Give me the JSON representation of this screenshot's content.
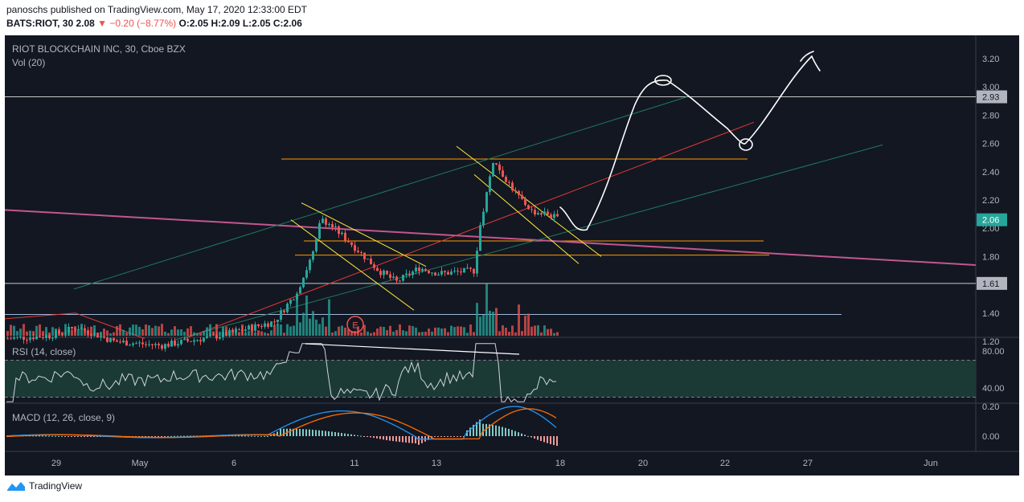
{
  "header": {
    "published_by": "panoschs published on TradingView.com, May 17, 2020 12:33:00 EDT",
    "symbol": "BATS:RIOT, 30",
    "last": "2.08",
    "arrow": "▼",
    "change": "−0.20 (−8.77%)",
    "ohlc": "O:2.05 H:2.09 L:2.05 C:2.06"
  },
  "pane_title": "RIOT BLOCKCHAIN INC, 30, Cboe BZX",
  "vol_label": "Vol (20)",
  "rsi_label": "RSI (14, close)",
  "macd_label": "MACD (12, 26, close, 9)",
  "footer_brand": "TradingView",
  "annotation_marker": "E",
  "price_axis": {
    "ticks": [
      "3.20",
      "3.00",
      "2.80",
      "2.60",
      "2.40",
      "2.20",
      "2.00",
      "1.80",
      "1.60",
      "1.40",
      "1.20"
    ],
    "tags": [
      {
        "label": "2.93",
        "value": 2.93
      },
      {
        "label": "2.06",
        "value": 2.06
      },
      {
        "label": "1.61",
        "value": 1.61
      }
    ]
  },
  "rsi_axis": {
    "ticks": [
      "80.00",
      "40.00"
    ],
    "band_upper": 70,
    "band_lower": 30
  },
  "macd_axis": {
    "ticks": [
      "0.20",
      "0.00"
    ]
  },
  "time_axis": [
    "29",
    "May",
    "6",
    "11",
    "13",
    "18",
    "20",
    "22",
    "27",
    "Jun"
  ],
  "colors": {
    "background": "#131722",
    "grid": "#363c4e",
    "text": "#b2b5be",
    "up": "#26a69a",
    "down": "#ef5350",
    "last_price_tag": "#26a69a",
    "level_tag": "#b2b5be",
    "orange_levels": "#ff9800",
    "yellow_channel": "#ffeb3b",
    "green_channel": "#1e7b5f",
    "red_trend": "#e53935",
    "pink_trend": "#c2578f",
    "rsi_line": "#d1d4dc",
    "rsi_band": "#1b3a36",
    "macd_line": "#2196f3",
    "signal_line": "#ff6d00",
    "drawing": "#ffffff"
  },
  "chart_data": {
    "type": "candlestick",
    "title": "RIOT BLOCKCHAIN INC, 30, Cboe BZX",
    "interval": "30",
    "ylim": [
      1.08,
      3.33
    ],
    "horizontal_levels": [
      2.93,
      1.61,
      1.39,
      2.49,
      1.91,
      1.81
    ],
    "close_path_segments": [
      {
        "from": "Apr 29",
        "to": "May 7",
        "close_start": 1.22,
        "close_end": 1.55
      },
      {
        "from": "May 7",
        "to": "May 8",
        "close_start": 1.55,
        "close_end": 2.08
      },
      {
        "from": "May 8",
        "to": "May 12",
        "close_start": 2.08,
        "close_end": 1.62
      },
      {
        "from": "May 12",
        "to": "May 14",
        "close_start": 1.62,
        "close_end": 1.68
      },
      {
        "from": "May 14",
        "to": "May 15",
        "close_start": 1.68,
        "close_end": 2.48
      },
      {
        "from": "May 15",
        "to": "May 18",
        "close_start": 2.48,
        "close_end": 2.06
      }
    ],
    "intraday_high": 2.58,
    "last_close": 2.06,
    "rsi": {
      "length": 14,
      "upper": 70,
      "lower": 30,
      "last_value": 47
    },
    "macd": {
      "fast": 12,
      "slow": 26,
      "signal": 9
    }
  }
}
